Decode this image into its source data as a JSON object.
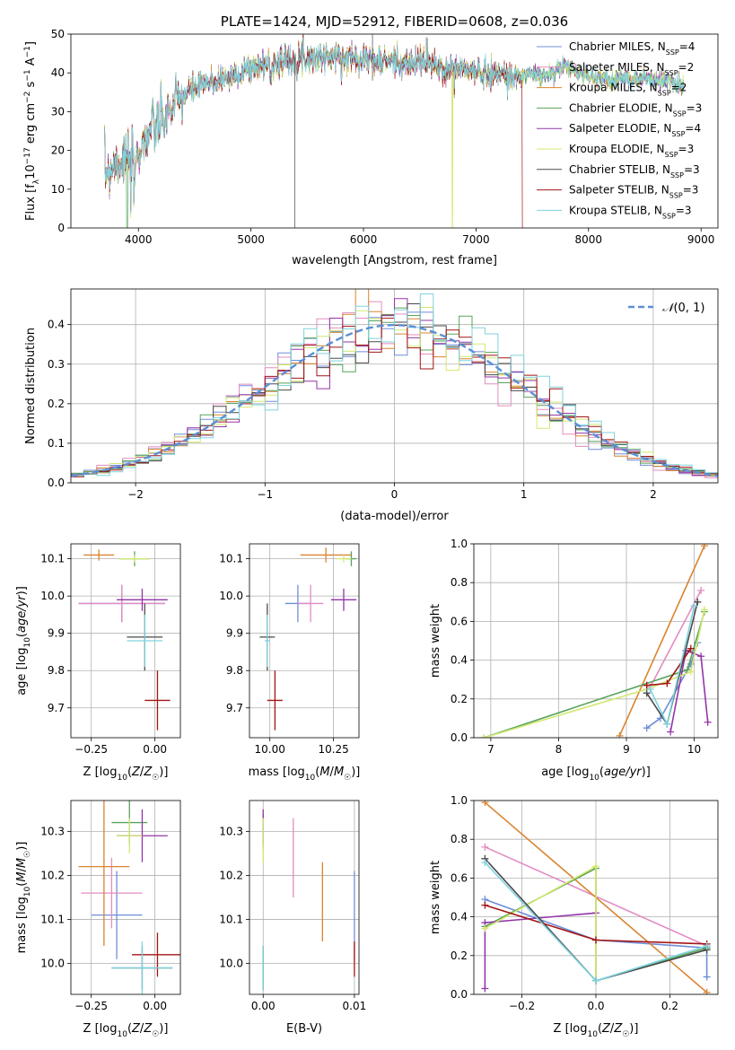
{
  "colors": [
    "#6f8ed8",
    "#e38cc2",
    "#d9842f",
    "#59a35a",
    "#9236a8",
    "#d2e870",
    "#4a4a4a",
    "#a31515",
    "#7fd3de"
  ],
  "chart_data": [
    {
      "id": "spectrum",
      "type": "line",
      "title": "PLATE=1424, MJD=52912, FIBERID=0608, z=0.036",
      "xlabel": "wavelength [Angstrom, rest frame]",
      "ylabel": "Flux [f_λ10^-17 erg cm^-2 s^-1 A^-1]",
      "xlim": [
        3400,
        9150
      ],
      "ylim": [
        0,
        50
      ],
      "xticks": [
        4000,
        5000,
        6000,
        7000,
        8000,
        9000
      ],
      "yticks": [
        0,
        10,
        20,
        30,
        40,
        50
      ],
      "grid": false,
      "legend_position": "upper-right",
      "continuum": [
        [
          3700,
          14
        ],
        [
          3800,
          17
        ],
        [
          3900,
          18
        ],
        [
          4000,
          20
        ],
        [
          4100,
          25
        ],
        [
          4200,
          27
        ],
        [
          4300,
          31
        ],
        [
          4400,
          34
        ],
        [
          4500,
          36
        ],
        [
          4600,
          37
        ],
        [
          4700,
          38
        ],
        [
          4800,
          39
        ],
        [
          4900,
          40
        ],
        [
          5000,
          41
        ],
        [
          5100,
          42
        ],
        [
          5200,
          43
        ],
        [
          5300,
          43
        ],
        [
          5400,
          44
        ],
        [
          5500,
          44
        ],
        [
          5600,
          44
        ],
        [
          5700,
          44
        ],
        [
          5800,
          44
        ],
        [
          5900,
          44
        ],
        [
          6000,
          44
        ],
        [
          6100,
          43
        ],
        [
          6200,
          43
        ],
        [
          6300,
          43
        ],
        [
          6400,
          42
        ],
        [
          6500,
          43
        ],
        [
          6600,
          42
        ],
        [
          6700,
          41
        ],
        [
          6800,
          41
        ],
        [
          6900,
          41
        ],
        [
          7000,
          40
        ],
        [
          7100,
          40
        ],
        [
          7200,
          40
        ],
        [
          7300,
          39
        ],
        [
          7400,
          39
        ],
        [
          7500,
          40
        ],
        [
          7600,
          39
        ],
        [
          7700,
          40
        ],
        [
          7800,
          42
        ],
        [
          7900,
          40
        ],
        [
          8000,
          39
        ],
        [
          8100,
          39
        ],
        [
          8200,
          38
        ],
        [
          8300,
          39
        ],
        [
          8400,
          38
        ],
        [
          8500,
          39
        ],
        [
          8600,
          38
        ],
        [
          8700,
          38
        ],
        [
          8800,
          37
        ],
        [
          8850,
          37
        ]
      ],
      "series": [
        {
          "name": "Chabrier MILES, N",
          "sub": "SSP",
          "n": "=4"
        },
        {
          "name": "Salpeter MILES, N",
          "sub": "SSP",
          "n": "=2"
        },
        {
          "name": "Kroupa MILES, N",
          "sub": "SSP",
          "n": "=2"
        },
        {
          "name": "Chabrier ELODIE, N",
          "sub": "SSP",
          "n": "=3"
        },
        {
          "name": "Salpeter ELODIE, N",
          "sub": "SSP",
          "n": "=4"
        },
        {
          "name": "Kroupa ELODIE, N",
          "sub": "SSP",
          "n": "=3"
        },
        {
          "name": "Chabrier STELIB, N",
          "sub": "SSP",
          "n": "=3"
        },
        {
          "name": "Salpeter STELIB, N",
          "sub": "SSP",
          "n": "=3"
        },
        {
          "name": "Kroupa STELIB, N",
          "sub": "SSP",
          "n": "=3"
        }
      ]
    },
    {
      "id": "residuals",
      "type": "histogram",
      "xlabel": "(data-model)/error",
      "ylabel": "Normed distribution",
      "xlim": [
        -2.5,
        2.5
      ],
      "ylim": [
        0,
        0.49
      ],
      "xticks": [
        -2,
        -1,
        0,
        1,
        2
      ],
      "yticks": [
        0.0,
        0.1,
        0.2,
        0.3,
        0.4
      ],
      "grid": true,
      "bin_width": 0.1,
      "reference_curve": "N(0,1)",
      "legend_position": "upper-right"
    },
    {
      "id": "age_vs_Z",
      "type": "errorbar",
      "xlabel": "Z [log10(Z/Z☉)]",
      "ylabel": "age [log10(age/yr)]",
      "xlim": [
        -0.33,
        0.1
      ],
      "ylim": [
        9.62,
        10.14
      ],
      "xticks": [
        -0.25,
        0.0
      ],
      "yticks": [
        9.7,
        9.8,
        9.9,
        10.0,
        10.1
      ],
      "grid": true,
      "points": [
        {
          "x": -0.13,
          "xerr": 0.17,
          "y": 9.98,
          "yerr": 0.05,
          "c": 0
        },
        {
          "x": -0.13,
          "xerr": 0.17,
          "y": 9.98,
          "yerr": 0.05,
          "c": 1
        },
        {
          "x": -0.22,
          "xerr": 0.06,
          "y": 10.11,
          "yerr": 0.015,
          "c": 2
        },
        {
          "x": -0.08,
          "xerr": 0.06,
          "y": 10.1,
          "yerr": 0.02,
          "c": 3
        },
        {
          "x": -0.05,
          "xerr": 0.1,
          "y": 9.99,
          "yerr": 0.03,
          "c": 4
        },
        {
          "x": -0.08,
          "xerr": 0.06,
          "y": 10.1,
          "yerr": 0.01,
          "c": 5
        },
        {
          "x": -0.04,
          "xerr": 0.07,
          "y": 9.89,
          "yerr": 0.09,
          "c": 6
        },
        {
          "x": 0.01,
          "xerr": 0.05,
          "y": 9.72,
          "yerr": 0.08,
          "c": 7
        },
        {
          "x": -0.04,
          "xerr": 0.07,
          "y": 9.88,
          "yerr": 0.07,
          "c": 8
        }
      ]
    },
    {
      "id": "age_vs_mass",
      "type": "errorbar",
      "xlabel": "mass [log10(M/M☉)]",
      "ylabel": "",
      "xlim": [
        9.92,
        10.35
      ],
      "ylim": [
        9.62,
        10.14
      ],
      "xticks": [
        10.0,
        10.25
      ],
      "yticks": [
        9.7,
        9.8,
        9.9,
        10.0,
        10.1
      ],
      "grid": true,
      "points": [
        {
          "x": 10.11,
          "xerr": 0.05,
          "y": 9.98,
          "yerr": 0.05,
          "c": 0
        },
        {
          "x": 10.16,
          "xerr": 0.05,
          "y": 9.98,
          "yerr": 0.05,
          "c": 1
        },
        {
          "x": 10.22,
          "xerr": 0.1,
          "y": 10.11,
          "yerr": 0.02,
          "c": 2
        },
        {
          "x": 10.32,
          "xerr": 0.02,
          "y": 10.1,
          "yerr": 0.02,
          "c": 3
        },
        {
          "x": 10.29,
          "xerr": 0.05,
          "y": 9.99,
          "yerr": 0.03,
          "c": 4
        },
        {
          "x": 10.29,
          "xerr": 0.03,
          "y": 10.1,
          "yerr": 0.01,
          "c": 5
        },
        {
          "x": 9.99,
          "xerr": 0.03,
          "y": 9.89,
          "yerr": 0.09,
          "c": 6
        },
        {
          "x": 10.02,
          "xerr": 0.03,
          "y": 9.72,
          "yerr": 0.08,
          "c": 7
        },
        {
          "x": 9.99,
          "xerr": 0.01,
          "y": 9.88,
          "yerr": 0.07,
          "c": 8
        }
      ]
    },
    {
      "id": "weight_vs_age",
      "type": "line",
      "xlabel": "age [log10(age/yr)]",
      "ylabel": "mass weight",
      "xlim": [
        6.75,
        10.35
      ],
      "ylim": [
        0,
        1
      ],
      "xticks": [
        7,
        8,
        9,
        10
      ],
      "yticks": [
        0.0,
        0.2,
        0.4,
        0.6,
        0.8,
        1.0
      ],
      "grid": true,
      "series": [
        {
          "c": 0,
          "pts": [
            [
              9.3,
              0.05
            ],
            [
              9.5,
              0.1
            ],
            [
              9.95,
              0.38
            ],
            [
              10.05,
              0.49
            ]
          ]
        },
        {
          "c": 1,
          "pts": [
            [
              9.35,
              0.26
            ],
            [
              10.1,
              0.76
            ]
          ]
        },
        {
          "c": 2,
          "pts": [
            [
              8.9,
              0.01
            ],
            [
              10.15,
              0.99
            ]
          ]
        },
        {
          "c": 3,
          "pts": [
            [
              6.9,
              0.0
            ],
            [
              9.9,
              0.35
            ],
            [
              10.15,
              0.65
            ]
          ]
        },
        {
          "c": 4,
          "pts": [
            [
              9.65,
              0.03
            ],
            [
              9.88,
              0.45
            ],
            [
              10.1,
              0.42
            ],
            [
              10.2,
              0.08
            ]
          ]
        },
        {
          "c": 5,
          "pts": [
            [
              6.9,
              0.0
            ],
            [
              9.3,
              0.25
            ],
            [
              9.95,
              0.34
            ],
            [
              10.15,
              0.66
            ]
          ]
        },
        {
          "c": 6,
          "pts": [
            [
              9.3,
              0.23
            ],
            [
              9.6,
              0.07
            ],
            [
              10.05,
              0.7
            ]
          ]
        },
        {
          "c": 7,
          "pts": [
            [
              9.3,
              0.27
            ],
            [
              9.6,
              0.28
            ],
            [
              9.95,
              0.46
            ]
          ]
        },
        {
          "c": 8,
          "pts": [
            [
              9.35,
              0.25
            ],
            [
              9.6,
              0.07
            ],
            [
              10.0,
              0.68
            ]
          ]
        }
      ]
    },
    {
      "id": "mass_vs_Z",
      "type": "errorbar",
      "xlabel": "Z [log10(Z/Z☉)]",
      "ylabel": "mass [log10(M/M☉)]",
      "xlim": [
        -0.33,
        0.1
      ],
      "ylim": [
        9.93,
        10.37
      ],
      "xticks": [
        -0.25,
        0.0
      ],
      "yticks": [
        10.0,
        10.1,
        10.2,
        10.3
      ],
      "grid": true,
      "points": [
        {
          "x": -0.15,
          "xerr": 0.1,
          "y": 10.11,
          "yerr": 0.1,
          "c": 0
        },
        {
          "x": -0.17,
          "xerr": 0.12,
          "y": 10.16,
          "yerr": 0.08,
          "c": 1
        },
        {
          "x": -0.2,
          "xerr": 0.1,
          "y": 10.22,
          "yerr": 0.18,
          "c": 2
        },
        {
          "x": -0.1,
          "xerr": 0.07,
          "y": 10.32,
          "yerr": 0.05,
          "c": 3
        },
        {
          "x": -0.05,
          "xerr": 0.1,
          "y": 10.29,
          "yerr": 0.06,
          "c": 4
        },
        {
          "x": -0.1,
          "xerr": 0.05,
          "y": 10.29,
          "yerr": 0.04,
          "c": 5
        },
        {
          "x": -0.05,
          "xerr": 0.12,
          "y": 9.99,
          "yerr": 0.05,
          "c": 6
        },
        {
          "x": 0.01,
          "xerr": 0.1,
          "y": 10.02,
          "yerr": 0.05,
          "c": 7
        },
        {
          "x": -0.05,
          "xerr": 0.12,
          "y": 9.99,
          "yerr": 0.06,
          "c": 8
        }
      ]
    },
    {
      "id": "mass_vs_ebv",
      "type": "errorbar",
      "xlabel": "E(B-V)",
      "ylabel": "",
      "xlim": [
        -0.0015,
        0.0105
      ],
      "ylim": [
        9.93,
        10.37
      ],
      "xticks": [
        0.0,
        0.01
      ],
      "yticks": [
        10.0,
        10.1,
        10.2,
        10.3
      ],
      "grid": true,
      "points": [
        {
          "x": 0.01,
          "y": 10.11,
          "yerr": 0.1,
          "c": 0
        },
        {
          "x": 0.0033,
          "y": 10.24,
          "yerr": 0.09,
          "c": 1
        },
        {
          "x": 0.0065,
          "y": 10.14,
          "yerr": 0.09,
          "c": 2
        },
        {
          "x": 0.0,
          "y": 10.3,
          "yerr": 0.04,
          "c": 3
        },
        {
          "x": 0.0,
          "y": 10.31,
          "yerr": 0.04,
          "c": 4
        },
        {
          "x": 0.0,
          "y": 10.28,
          "yerr": 0.05,
          "c": 5
        },
        {
          "x": 0.0,
          "y": 9.99,
          "yerr": 0.05,
          "c": 6
        },
        {
          "x": 0.01,
          "y": 10.01,
          "yerr": 0.04,
          "c": 7
        },
        {
          "x": 0.0,
          "y": 9.99,
          "yerr": 0.05,
          "c": 8
        }
      ]
    },
    {
      "id": "weight_vs_Z",
      "type": "line",
      "xlabel": "Z [log10(Z/Z☉)]",
      "ylabel": "mass weight",
      "xlim": [
        -0.33,
        0.33
      ],
      "ylim": [
        0,
        1
      ],
      "xticks": [
        -0.2,
        0.0,
        0.2
      ],
      "yticks": [
        0.0,
        0.2,
        0.4,
        0.6,
        0.8,
        1.0
      ],
      "grid": true,
      "series": [
        {
          "c": 0,
          "pts": [
            [
              -0.3,
              0.49
            ],
            [
              0.0,
              0.28
            ],
            [
              0.3,
              0.24
            ],
            [
              0.3,
              0.09
            ]
          ]
        },
        {
          "c": 1,
          "pts": [
            [
              -0.3,
              0.76
            ],
            [
              0.3,
              0.25
            ]
          ]
        },
        {
          "c": 2,
          "pts": [
            [
              -0.3,
              0.99
            ],
            [
              0.3,
              0.01
            ]
          ]
        },
        {
          "c": 3,
          "pts": [
            [
              -0.3,
              0.35
            ],
            [
              0.0,
              0.65
            ],
            [
              0.0,
              0.07
            ],
            [
              0.3,
              0.24
            ]
          ]
        },
        {
          "c": 4,
          "pts": [
            [
              -0.3,
              0.03
            ],
            [
              -0.3,
              0.37
            ],
            [
              0.0,
              0.42
            ]
          ]
        },
        {
          "c": 5,
          "pts": [
            [
              -0.3,
              0.34
            ],
            [
              0.0,
              0.66
            ],
            [
              0.0,
              0.07
            ]
          ]
        },
        {
          "c": 6,
          "pts": [
            [
              -0.3,
              0.7
            ],
            [
              0.0,
              0.07
            ],
            [
              0.3,
              0.23
            ]
          ]
        },
        {
          "c": 7,
          "pts": [
            [
              -0.3,
              0.46
            ],
            [
              0.0,
              0.28
            ],
            [
              0.3,
              0.26
            ]
          ]
        },
        {
          "c": 8,
          "pts": [
            [
              -0.3,
              0.68
            ],
            [
              0.0,
              0.07
            ],
            [
              0.3,
              0.25
            ]
          ]
        }
      ]
    }
  ]
}
